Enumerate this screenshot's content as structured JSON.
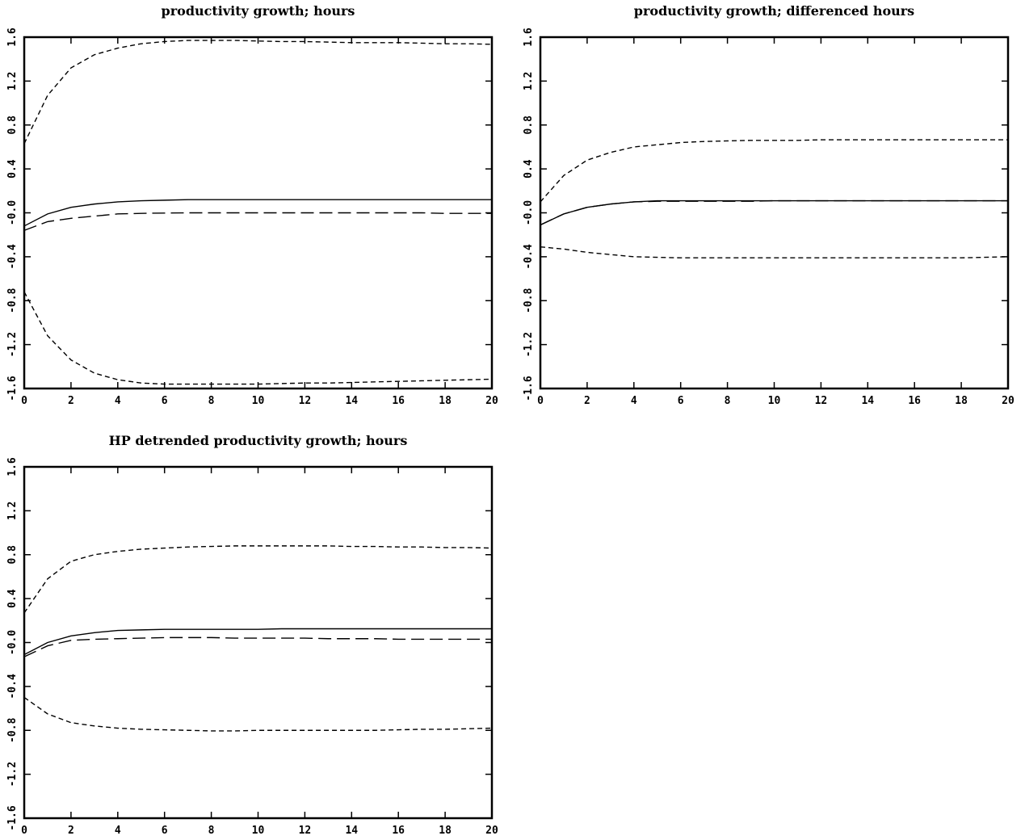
{
  "chart_data": [
    {
      "type": "line",
      "title": "productivity growth; hours",
      "xlabel": "",
      "ylabel": "",
      "xlim": [
        0,
        20
      ],
      "ylim": [
        -1.6,
        1.6
      ],
      "xticks": [
        "0",
        "2",
        "4",
        "6",
        "8",
        "10",
        "12",
        "14",
        "16",
        "18",
        "20"
      ],
      "yticks": [
        "1.6",
        "1.2",
        "0.8",
        "0.4",
        "-0.0",
        "-0.4",
        "-0.8",
        "-1.2",
        "-1.6"
      ],
      "grid": false,
      "x": [
        0,
        1,
        2,
        3,
        4,
        5,
        6,
        7,
        8,
        9,
        10,
        11,
        12,
        13,
        14,
        15,
        16,
        17,
        18,
        19,
        20
      ],
      "series": [
        {
          "style": "solid",
          "values": [
            -0.12,
            -0.01,
            0.05,
            0.08,
            0.1,
            0.11,
            0.115,
            0.12,
            0.12,
            0.12,
            0.12,
            0.12,
            0.12,
            0.12,
            0.12,
            0.12,
            0.12,
            0.12,
            0.12,
            0.12,
            0.12
          ]
        },
        {
          "style": "long-dash",
          "values": [
            -0.16,
            -0.08,
            -0.05,
            -0.03,
            -0.01,
            -0.005,
            -0.002,
            0.0,
            0.0,
            0.0,
            0.0,
            0.0,
            0.0,
            0.0,
            0.0,
            0.0,
            0.0,
            0.0,
            -0.005,
            -0.005,
            -0.005
          ]
        },
        {
          "style": "short-dash",
          "values": [
            0.63,
            1.07,
            1.32,
            1.44,
            1.5,
            1.54,
            1.56,
            1.57,
            1.57,
            1.57,
            1.565,
            1.56,
            1.56,
            1.555,
            1.55,
            1.55,
            1.55,
            1.545,
            1.54,
            1.54,
            1.535
          ]
        },
        {
          "style": "short-dash",
          "values": [
            -0.72,
            -1.12,
            -1.34,
            -1.46,
            -1.52,
            -1.55,
            -1.56,
            -1.56,
            -1.56,
            -1.56,
            -1.56,
            -1.555,
            -1.55,
            -1.55,
            -1.545,
            -1.54,
            -1.535,
            -1.53,
            -1.525,
            -1.52,
            -1.515
          ]
        }
      ]
    },
    {
      "type": "line",
      "title": "productivity growth; differenced hours",
      "xlabel": "",
      "ylabel": "",
      "xlim": [
        0,
        20
      ],
      "ylim": [
        -1.6,
        1.6
      ],
      "xticks": [
        "0",
        "2",
        "4",
        "6",
        "8",
        "10",
        "12",
        "14",
        "16",
        "18",
        "20"
      ],
      "yticks": [
        "1.6",
        "1.2",
        "0.8",
        "0.4",
        "-0.0",
        "-0.4",
        "-0.8",
        "-1.2",
        "-1.6"
      ],
      "grid": false,
      "x": [
        0,
        1,
        2,
        3,
        4,
        5,
        6,
        7,
        8,
        9,
        10,
        11,
        12,
        13,
        14,
        15,
        16,
        17,
        18,
        19,
        20
      ],
      "series": [
        {
          "style": "solid",
          "values": [
            -0.11,
            -0.01,
            0.05,
            0.08,
            0.1,
            0.11,
            0.11,
            0.11,
            0.11,
            0.11,
            0.11,
            0.11,
            0.11,
            0.11,
            0.11,
            0.11,
            0.11,
            0.11,
            0.11,
            0.11,
            0.11
          ]
        },
        {
          "style": "long-dash",
          "values": [
            -0.11,
            -0.01,
            0.05,
            0.08,
            0.1,
            0.105,
            0.105,
            0.105,
            0.105,
            0.105,
            0.11,
            0.11,
            0.11,
            0.11,
            0.11,
            0.11,
            0.11,
            0.11,
            0.11,
            0.11,
            0.11
          ]
        },
        {
          "style": "short-dash",
          "values": [
            0.1,
            0.34,
            0.48,
            0.55,
            0.6,
            0.62,
            0.64,
            0.65,
            0.655,
            0.66,
            0.66,
            0.66,
            0.665,
            0.665,
            0.665,
            0.665,
            0.665,
            0.665,
            0.665,
            0.665,
            0.665
          ]
        },
        {
          "style": "short-dash",
          "values": [
            -0.31,
            -0.33,
            -0.36,
            -0.38,
            -0.4,
            -0.405,
            -0.41,
            -0.41,
            -0.41,
            -0.41,
            -0.41,
            -0.41,
            -0.41,
            -0.41,
            -0.41,
            -0.41,
            -0.41,
            -0.41,
            -0.41,
            -0.405,
            -0.4
          ]
        }
      ]
    },
    {
      "type": "line",
      "title": "HP detrended productivity growth; hours",
      "xlabel": "",
      "ylabel": "",
      "xlim": [
        0,
        20
      ],
      "ylim": [
        -1.6,
        1.6
      ],
      "xticks": [
        "0",
        "2",
        "4",
        "6",
        "8",
        "10",
        "12",
        "14",
        "16",
        "18",
        "20"
      ],
      "yticks": [
        "1.6",
        "1.2",
        "0.8",
        "0.4",
        "-0.0",
        "-0.4",
        "-0.8",
        "-1.2",
        "-1.6"
      ],
      "grid": false,
      "x": [
        0,
        1,
        2,
        3,
        4,
        5,
        6,
        7,
        8,
        9,
        10,
        11,
        12,
        13,
        14,
        15,
        16,
        17,
        18,
        19,
        20
      ],
      "series": [
        {
          "style": "solid",
          "values": [
            -0.11,
            0.0,
            0.06,
            0.09,
            0.11,
            0.115,
            0.12,
            0.12,
            0.12,
            0.12,
            0.12,
            0.125,
            0.125,
            0.125,
            0.125,
            0.125,
            0.125,
            0.125,
            0.125,
            0.125,
            0.125
          ]
        },
        {
          "style": "long-dash",
          "values": [
            -0.13,
            -0.03,
            0.02,
            0.03,
            0.035,
            0.04,
            0.045,
            0.045,
            0.045,
            0.04,
            0.04,
            0.04,
            0.04,
            0.035,
            0.035,
            0.035,
            0.03,
            0.03,
            0.03,
            0.03,
            0.03
          ]
        },
        {
          "style": "short-dash",
          "values": [
            0.27,
            0.58,
            0.74,
            0.8,
            0.83,
            0.85,
            0.86,
            0.87,
            0.875,
            0.88,
            0.88,
            0.88,
            0.88,
            0.88,
            0.875,
            0.875,
            0.87,
            0.87,
            0.865,
            0.865,
            0.86
          ]
        },
        {
          "style": "short-dash",
          "values": [
            -0.5,
            -0.65,
            -0.73,
            -0.76,
            -0.78,
            -0.79,
            -0.795,
            -0.8,
            -0.805,
            -0.805,
            -0.8,
            -0.8,
            -0.8,
            -0.8,
            -0.8,
            -0.8,
            -0.795,
            -0.79,
            -0.79,
            -0.785,
            -0.78
          ]
        }
      ]
    }
  ]
}
